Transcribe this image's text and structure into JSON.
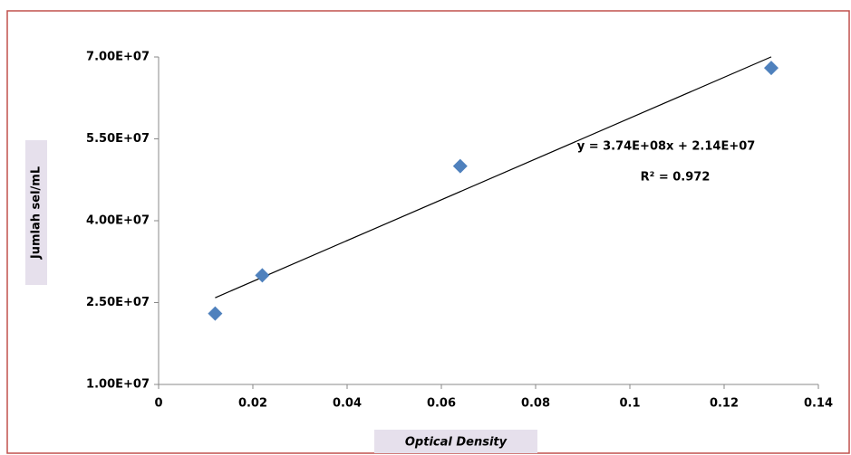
{
  "chart_data": {
    "type": "scatter",
    "x_label": "Optical Density",
    "y_label": "Jumlah sel/mL",
    "x": [
      0.012,
      0.022,
      0.064,
      0.13
    ],
    "values": [
      23000000,
      30000000,
      50000000,
      68000000
    ],
    "color": "#4f81bd",
    "xlim": [
      0,
      0.14
    ],
    "xticks": [
      0,
      0.02,
      0.04,
      0.06,
      0.08,
      0.1,
      0.12,
      0.14
    ],
    "ylim": [
      10000000,
      70000000
    ],
    "yticks": [
      {
        "value": 10000000,
        "label": "1.00E+07"
      },
      {
        "value": 25000000,
        "label": "2.50E+07"
      },
      {
        "value": 40000000,
        "label": "4.00E+07"
      },
      {
        "value": 55000000,
        "label": "5.50E+07"
      },
      {
        "value": 70000000,
        "label": "7.00E+07"
      }
    ],
    "trendline": {
      "label": "y = 3.74E+08x + 2.14E+07",
      "slope": 374000000,
      "intercept": 21400000,
      "r2_label": "R² = 0.972"
    }
  }
}
